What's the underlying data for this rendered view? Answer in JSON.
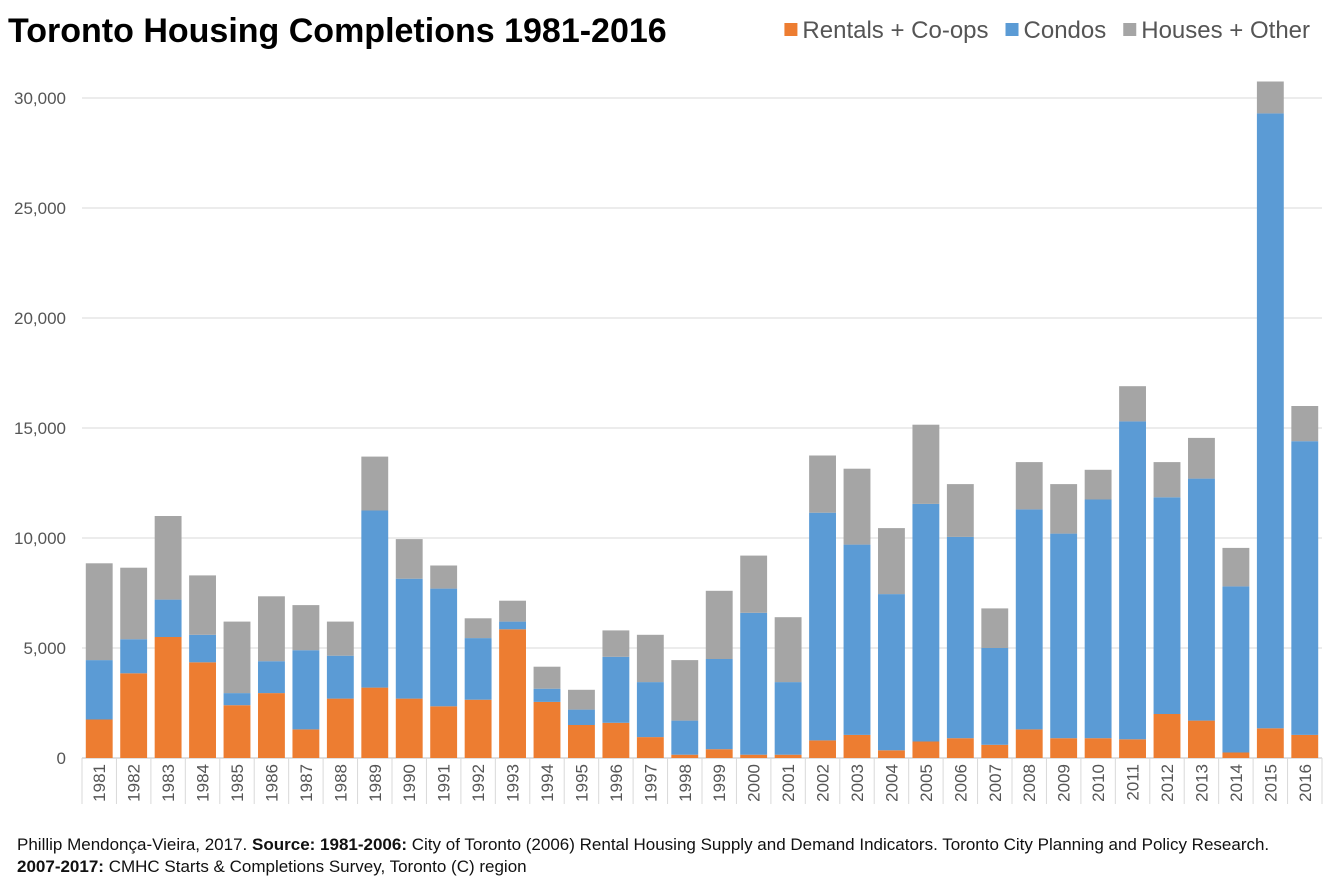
{
  "chart_data": {
    "type": "bar",
    "stacked": true,
    "title": "Toronto Housing Completions 1981-2016",
    "xlabel": "",
    "ylabel": "",
    "ylim": [
      0,
      30000
    ],
    "yticks": [
      0,
      5000,
      10000,
      15000,
      20000,
      25000,
      30000
    ],
    "ytick_labels": [
      "0",
      "5,000",
      "10,000",
      "15,000",
      "20,000",
      "25,000",
      "30,000"
    ],
    "grid": true,
    "legend_position": "top-right",
    "categories": [
      "1981",
      "1982",
      "1983",
      "1984",
      "1985",
      "1986",
      "1987",
      "1988",
      "1989",
      "1990",
      "1991",
      "1992",
      "1993",
      "1994",
      "1995",
      "1996",
      "1997",
      "1998",
      "1999",
      "2000",
      "2001",
      "2002",
      "2003",
      "2004",
      "2005",
      "2006",
      "2007",
      "2008",
      "2009",
      "2010",
      "2011",
      "2012",
      "2013",
      "2014",
      "2015",
      "2016"
    ],
    "series": [
      {
        "name": "Rentals + Co-ops",
        "color": "#ED7D31",
        "values": [
          1750,
          3850,
          5500,
          4350,
          2400,
          2950,
          1300,
          2700,
          3200,
          2700,
          2350,
          2650,
          5850,
          2550,
          1500,
          1600,
          950,
          150,
          400,
          150,
          150,
          800,
          1050,
          350,
          750,
          900,
          600,
          1300,
          900,
          900,
          850,
          2000,
          1700,
          250,
          1350,
          1050
        ]
      },
      {
        "name": "Condos",
        "color": "#5B9BD5",
        "values": [
          2700,
          1550,
          1700,
          1250,
          550,
          1450,
          3600,
          1950,
          8050,
          5450,
          5350,
          2800,
          350,
          600,
          700,
          3000,
          2500,
          1550,
          4100,
          6450,
          3300,
          10350,
          8650,
          7100,
          10800,
          9150,
          4400,
          10000,
          9300,
          10850,
          14450,
          9850,
          11000,
          7550,
          27950,
          13350
        ]
      },
      {
        "name": "Houses + Other",
        "color": "#A5A5A5",
        "values": [
          4400,
          3250,
          3800,
          2700,
          3250,
          2950,
          2050,
          1550,
          2450,
          1800,
          1050,
          900,
          950,
          1000,
          900,
          1200,
          2150,
          2750,
          3100,
          2600,
          2950,
          2600,
          3450,
          3000,
          3600,
          2400,
          1800,
          2150,
          2250,
          1350,
          1600,
          1600,
          1850,
          1750,
          1450,
          1600
        ]
      }
    ]
  },
  "footer": {
    "credit": "Phillip Mendonça-Vieira, 2017.",
    "source_label": "Source:",
    "range1_label": "1981-2006:",
    "range1_text": "City of Toronto (2006) Rental Housing Supply and Demand Indicators. Toronto City Planning and Policy Research.",
    "range2_label": "2007-2017:",
    "range2_text": "CMHC Starts & Completions Survey, Toronto (C) region"
  }
}
